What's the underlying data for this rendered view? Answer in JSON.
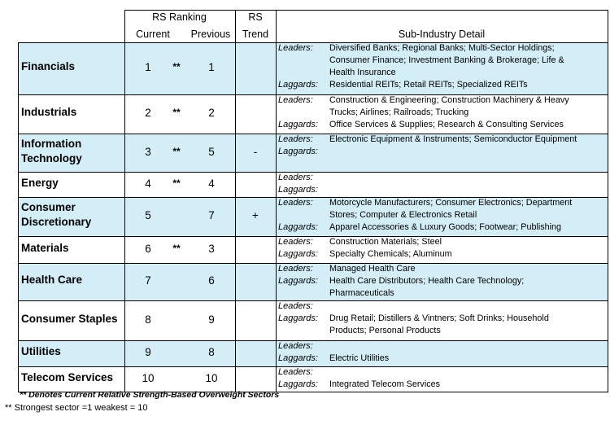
{
  "header": {
    "rs_ranking": "RS Ranking",
    "current": "Current",
    "previous": "Previous",
    "rs_trend_line1": "RS",
    "rs_trend_line2": "Trend",
    "sub_industry_detail": "Sub-Industry Detail"
  },
  "labels": {
    "leaders": "Leaders:",
    "laggards": "Laggards:"
  },
  "colors": {
    "shade": "#d4eef8",
    "white": "#ffffff",
    "border": "#000000"
  },
  "rows": [
    {
      "sector": [
        "Financials"
      ],
      "current": "1",
      "marker": "**",
      "previous": "1",
      "trend": "",
      "shaded": true,
      "leaders": [
        "Diversified Banks; Regional Banks; Multi-Sector Holdings;",
        "Consumer Finance; Investment Banking & Brokerage; Life &",
        "Health Insurance"
      ],
      "laggards": [
        "Residential REITs; Retail REITs; Specialized REITs"
      ]
    },
    {
      "sector": [
        "Industrials"
      ],
      "current": "2",
      "marker": "**",
      "previous": "2",
      "trend": "",
      "shaded": false,
      "leaders": [
        "Construction & Engineering; Construction Machinery & Heavy",
        "Trucks; Airlines; Railroads; Trucking"
      ],
      "laggards": [
        "Office Services & Supplies; Research & Consulting Services"
      ]
    },
    {
      "sector": [
        "Information",
        "Technology"
      ],
      "current": "3",
      "marker": "**",
      "previous": "5",
      "trend": "-",
      "shaded": true,
      "leaders": [
        "Electronic Equipment & Instruments; Semiconductor Equipment"
      ],
      "laggards": []
    },
    {
      "sector": [
        "Energy"
      ],
      "current": "4",
      "marker": "**",
      "previous": "4",
      "trend": "",
      "shaded": false,
      "leaders": [],
      "laggards": []
    },
    {
      "sector": [
        "Consumer",
        "Discretionary"
      ],
      "current": "5",
      "marker": "",
      "previous": "7",
      "trend": "+",
      "shaded": true,
      "leaders": [
        "Motorcycle Manufacturers; Consumer Electronics; Department",
        "Stores; Computer & Electronics Retail"
      ],
      "laggards": [
        "Apparel Accessories & Luxury Goods; Footwear; Publishing"
      ]
    },
    {
      "sector": [
        "Materials"
      ],
      "current": "6",
      "marker": "**",
      "previous": "3",
      "trend": "",
      "shaded": false,
      "leaders": [
        "Construction Materials; Steel"
      ],
      "laggards": [
        "Specialty Chemicals; Aluminum"
      ]
    },
    {
      "sector": [
        "Health Care"
      ],
      "current": "7",
      "marker": "",
      "previous": "6",
      "trend": "",
      "shaded": true,
      "leaders": [
        "Managed Health Care"
      ],
      "laggards": [
        "Health Care Distributors; Health Care Technology;",
        "Pharmaceuticals"
      ]
    },
    {
      "sector": [
        "Consumer Staples"
      ],
      "current": "8",
      "marker": "",
      "previous": "9",
      "trend": "",
      "shaded": false,
      "leaders": [],
      "laggards": [
        "Drug Retail; Distillers & Vintners; Soft Drinks; Household",
        "Products; Personal Products"
      ]
    },
    {
      "sector": [
        "Utilities"
      ],
      "current": "9",
      "marker": "",
      "previous": "8",
      "trend": "",
      "shaded": true,
      "leaders": [],
      "laggards": [
        "Electric Utilities"
      ]
    },
    {
      "sector": [
        "Telecom Services"
      ],
      "current": "10",
      "marker": "",
      "previous": "10",
      "trend": "",
      "shaded": false,
      "leaders": [],
      "laggards": [
        "Integrated Telecom Services"
      ]
    }
  ],
  "footnotes": {
    "line1": "** Denotes Current Relative Strength-Based Overweight Sectors",
    "line2": "** Strongest sector =1 weakest = 10"
  }
}
